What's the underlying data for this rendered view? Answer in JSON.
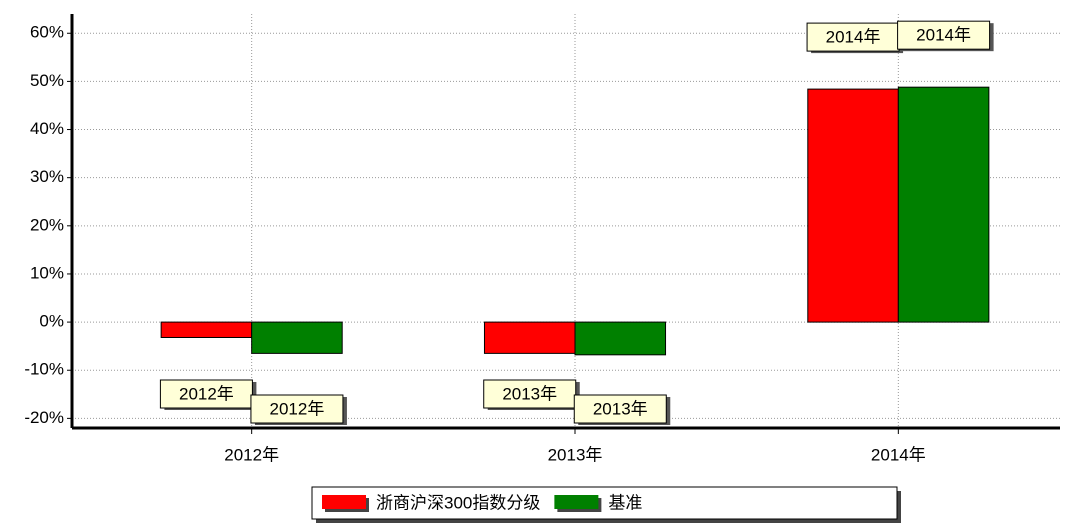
{
  "chart_data": {
    "type": "bar",
    "categories": [
      "2012年",
      "2013年",
      "2014年"
    ],
    "series": [
      {
        "name": "浙商沪深300指数分级",
        "color": "#ff0000",
        "values": [
          -3.2,
          -6.5,
          48.4
        ]
      },
      {
        "name": "基准",
        "color": "#008000",
        "values": [
          -6.5,
          -6.8,
          48.8
        ]
      }
    ],
    "ylim": [
      -22,
      64
    ],
    "yticks": [
      {
        "value": -20,
        "label": "-20%"
      },
      {
        "value": -10,
        "label": "-10%"
      },
      {
        "value": 0,
        "label": "0%"
      },
      {
        "value": 10,
        "label": "10%"
      },
      {
        "value": 20,
        "label": "20%"
      },
      {
        "value": 30,
        "label": "30%"
      },
      {
        "value": 40,
        "label": "40%"
      },
      {
        "value": 50,
        "label": "50%"
      },
      {
        "value": 60,
        "label": "60%"
      }
    ],
    "grid": true,
    "legend": "bottom"
  }
}
